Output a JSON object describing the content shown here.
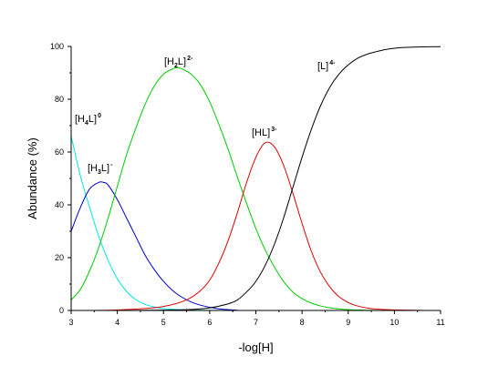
{
  "chart_data": {
    "type": "line",
    "title": "",
    "xlabel": "-log[H]",
    "ylabel": "Abundance (%)",
    "xlim": [
      3,
      11
    ],
    "ylim": [
      0,
      100
    ],
    "xticks": [
      3,
      4,
      5,
      6,
      7,
      8,
      9,
      10,
      11
    ],
    "yticks": [
      0,
      20,
      40,
      60,
      80,
      100
    ],
    "grid": false,
    "legend": "none",
    "series": [
      {
        "color": "#00e5e5",
        "label_parts": {
          "open": "[H",
          "sub": "4",
          "close": "L]",
          "sup": "0"
        },
        "x": [
          3.0,
          3.2,
          3.4,
          3.6,
          3.8,
          4.0,
          4.2,
          4.4,
          4.6,
          4.8,
          5.0,
          5.5,
          6.0,
          7.0,
          8.0,
          9.0,
          10.0,
          11.0
        ],
        "y": [
          66,
          51,
          39,
          28,
          19,
          12,
          7.2,
          4.1,
          2.3,
          1.3,
          0.7,
          0.2,
          0.05,
          0,
          0,
          0,
          0,
          0
        ]
      },
      {
        "color": "#0000cc",
        "label_parts": {
          "open": "[H",
          "sub": "3",
          "close": "L]",
          "sup": "-"
        },
        "x": [
          3.0,
          3.2,
          3.4,
          3.6,
          3.7,
          3.8,
          4.0,
          4.2,
          4.4,
          4.6,
          4.8,
          5.0,
          5.2,
          5.4,
          5.6,
          5.8,
          6.0,
          6.2,
          6.4,
          6.6
        ],
        "y": [
          30,
          39,
          46,
          48.5,
          48.5,
          47.5,
          42,
          35,
          28,
          21,
          15.5,
          11,
          7.5,
          5,
          3.2,
          2,
          1.2,
          0.6,
          0.3,
          0.1
        ]
      },
      {
        "color": "#00cc00",
        "label_parts": {
          "open": "[H",
          "sub": "2",
          "close": "L]",
          "sup": "2-"
        },
        "x": [
          3.0,
          3.2,
          3.4,
          3.6,
          3.8,
          4.0,
          4.2,
          4.4,
          4.6,
          4.8,
          5.0,
          5.2,
          5.3,
          5.4,
          5.6,
          5.8,
          6.0,
          6.2,
          6.4,
          6.6,
          6.8,
          7.0,
          7.2,
          7.4,
          7.6,
          7.8,
          8.0,
          8.2,
          8.4,
          8.6,
          8.8,
          9.0,
          9.5,
          10.0
        ],
        "y": [
          4,
          8,
          15,
          24,
          35,
          47,
          59,
          69,
          78,
          85,
          89.5,
          91.5,
          92,
          91.5,
          89.5,
          85.5,
          79,
          70.5,
          61,
          50.5,
          40.5,
          31,
          23,
          16.5,
          11,
          7,
          4.5,
          2.8,
          1.7,
          1.0,
          0.6,
          0.3,
          0.05,
          0
        ]
      },
      {
        "color": "#dd0000",
        "label_parts": {
          "open": "[HL]",
          "sub": "",
          "close": "",
          "sup": "3-"
        },
        "x": [
          3.5,
          4.0,
          4.5,
          5.0,
          5.5,
          5.8,
          6.0,
          6.2,
          6.4,
          6.6,
          6.8,
          7.0,
          7.2,
          7.4,
          7.6,
          7.8,
          8.0,
          8.2,
          8.4,
          8.6,
          8.8,
          9.0,
          9.2,
          9.5,
          10.0,
          10.7
        ],
        "y": [
          0,
          0.2,
          0.6,
          1.5,
          4,
          7.5,
          11.5,
          18,
          26.5,
          37,
          48.5,
          58,
          63.5,
          62,
          55,
          44.5,
          33,
          22.5,
          14.5,
          9,
          5.2,
          3,
          1.7,
          0.7,
          0.2,
          0
        ]
      },
      {
        "color": "#000000",
        "label_parts": {
          "open": "[L]",
          "sub": "",
          "close": "",
          "sup": "4-"
        },
        "x": [
          3.5,
          4.5,
          5.5,
          6.0,
          6.4,
          6.6,
          6.8,
          7.0,
          7.2,
          7.4,
          7.6,
          7.8,
          8.0,
          8.2,
          8.4,
          8.6,
          8.8,
          9.0,
          9.2,
          9.4,
          9.6,
          9.8,
          10.0,
          10.2,
          10.5,
          11.0
        ],
        "y": [
          0,
          0.05,
          0.3,
          1.0,
          2.5,
          4,
          7,
          11,
          17,
          25,
          35,
          46.5,
          58,
          68.5,
          77.5,
          84.5,
          89.5,
          93,
          95.5,
          97,
          98,
          98.8,
          99.3,
          99.6,
          99.8,
          99.9
        ]
      }
    ]
  }
}
